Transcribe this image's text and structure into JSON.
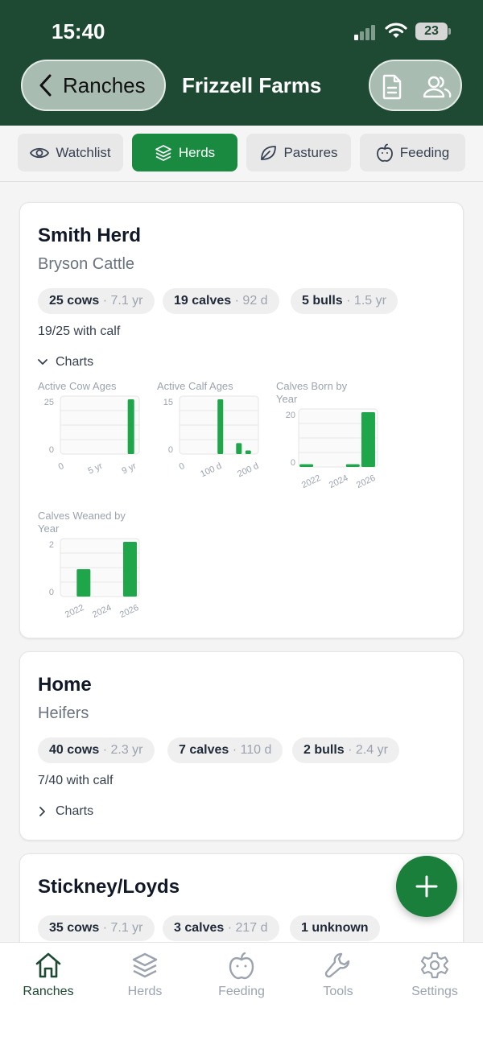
{
  "status_bar": {
    "time": "15:40",
    "battery": "23"
  },
  "header": {
    "back_label": "Ranches",
    "title": "Frizzell Farms"
  },
  "tabs": [
    {
      "label": "Watchlist",
      "icon": "eye-icon",
      "active": false
    },
    {
      "label": "Herds",
      "icon": "layers-icon",
      "active": true
    },
    {
      "label": "Pastures",
      "icon": "leaf-icon",
      "active": false
    },
    {
      "label": "Feeding",
      "icon": "apple-icon",
      "active": false
    }
  ],
  "herds": [
    {
      "name": "Smith Herd",
      "subtitle": "Bryson Cattle",
      "chips": [
        {
          "count": "25 cows",
          "detail": "· 7.1 yr"
        },
        {
          "count": "19 calves",
          "detail": "· 92 d"
        },
        {
          "count": "5 bulls",
          "detail": "· 1.5 yr"
        }
      ],
      "with_calf": "19/25 with calf",
      "charts_label": "Charts"
    },
    {
      "name": "Home",
      "subtitle": "Heifers",
      "chips": [
        {
          "count": "40 cows",
          "detail": "· 2.3 yr"
        },
        {
          "count": "7 calves",
          "detail": "· 110 d"
        },
        {
          "count": "2 bulls",
          "detail": "· 2.4 yr"
        }
      ],
      "with_calf": "7/40 with calf",
      "charts_label": "Charts"
    },
    {
      "name": "Stickney/Loyds",
      "chips": [
        {
          "count": "35 cows",
          "detail": "· 7.1 yr"
        },
        {
          "count": "3 calves",
          "detail": "· 217 d"
        },
        {
          "count": "1 unknown",
          "detail": ""
        }
      ]
    }
  ],
  "chart_data": [
    {
      "type": "bar",
      "title": "Active Cow Ages",
      "x_ticks": [
        "0",
        "5 yr",
        "9 yr"
      ],
      "y_ticks": [
        "25",
        "0"
      ],
      "ylim": [
        0,
        25
      ],
      "bars": [
        {
          "x": 8.5,
          "value": 25
        }
      ]
    },
    {
      "type": "bar",
      "title": "Active Calf Ages",
      "x_ticks": [
        "0",
        "100 d",
        "200 d"
      ],
      "y_ticks": [
        "15",
        "0"
      ],
      "ylim": [
        0,
        15
      ],
      "bars": [
        {
          "x": 88,
          "value": 15
        },
        {
          "x": 128,
          "value": 3
        },
        {
          "x": 148,
          "value": 1
        }
      ]
    },
    {
      "type": "bar",
      "title": "Calves Born by Year",
      "x_ticks": [
        "2022",
        "2024",
        "2026"
      ],
      "y_ticks": [
        "20",
        "0"
      ],
      "ylim": [
        0,
        20
      ],
      "bars": [
        {
          "x": 2022,
          "value": 1
        },
        {
          "x": 2025,
          "value": 1
        },
        {
          "x": 2026,
          "value": 20
        }
      ]
    },
    {
      "type": "bar",
      "title": "Calves Weaned by Year",
      "x_ticks": [
        "2022",
        "2024",
        "2026"
      ],
      "y_ticks": [
        "2",
        "0"
      ],
      "ylim": [
        0,
        2
      ],
      "bars": [
        {
          "x": 2023,
          "value": 1
        },
        {
          "x": 2026,
          "value": 2
        }
      ]
    }
  ],
  "colors": {
    "header": "#1e4a34",
    "accent": "#1a8a41",
    "bar": "#1fa64a"
  },
  "bottom_nav": [
    {
      "label": "Ranches",
      "icon": "home-icon",
      "active": true
    },
    {
      "label": "Herds",
      "icon": "layers-icon",
      "active": false
    },
    {
      "label": "Feeding",
      "icon": "apple-icon",
      "active": false
    },
    {
      "label": "Tools",
      "icon": "wrench-icon",
      "active": false
    },
    {
      "label": "Settings",
      "icon": "gear-icon",
      "active": false
    }
  ]
}
